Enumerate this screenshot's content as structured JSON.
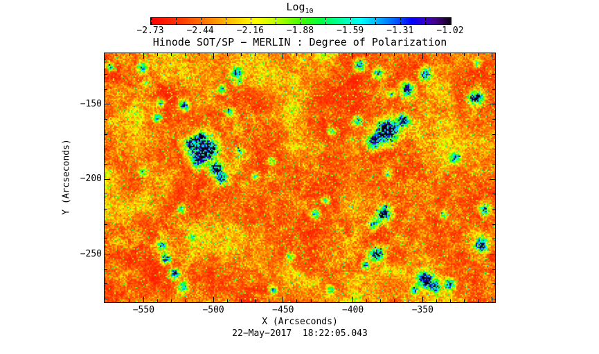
{
  "figure": {
    "colorbar_title": "Log",
    "colorbar_title_sub": "10",
    "colorbar_tick_labels": [
      "−2.73",
      "−2.44",
      "−2.16",
      "−1.88",
      "−1.59",
      "−1.31",
      "−1.02"
    ],
    "title": "Hinode SOT/SP − MERLIN : Degree of Polarization",
    "x_axis_label": "X (Arcseconds)",
    "y_axis_label": "Y (Arcseconds)",
    "x_tick_labels": [
      "−550",
      "−500",
      "−450",
      "−400",
      "−350"
    ],
    "y_tick_labels": [
      "−150",
      "−200",
      "−250"
    ],
    "timestamp": "22−May−2017  18:22:05.043"
  },
  "chart_data": {
    "type": "heatmap",
    "title": "Hinode SOT/SP - MERLIN : Degree of Polarization",
    "xlabel": "X (Arcseconds)",
    "ylabel": "Y (Arcseconds)",
    "timestamp": "22-May-2017 18:22:05.043",
    "x_range": [
      -578,
      -298
    ],
    "y_range": [
      -282,
      -116
    ],
    "x_ticks": [
      -550,
      -500,
      -450,
      -400,
      -350
    ],
    "y_ticks": [
      -150,
      -200,
      -250
    ],
    "minor_tick_step_arcsec": 10,
    "grid": false,
    "colorbar": {
      "label": "Log10",
      "orientation": "horizontal",
      "min": -2.73,
      "max": -1.02,
      "tick_values": [
        -2.73,
        -2.44,
        -2.16,
        -1.88,
        -1.59,
        -1.31,
        -1.02
      ],
      "palette_low_to_high": "red - orange - yellow - green - cyan - blue - violet - black"
    },
    "colormap_stops": [
      [
        0.0,
        "#ff0000"
      ],
      [
        0.09,
        "#ff3300"
      ],
      [
        0.18,
        "#ff7700"
      ],
      [
        0.28,
        "#ffcc00"
      ],
      [
        0.35,
        "#ffff00"
      ],
      [
        0.42,
        "#bbff00"
      ],
      [
        0.5,
        "#44ff00"
      ],
      [
        0.57,
        "#00ff44"
      ],
      [
        0.64,
        "#00ffaa"
      ],
      [
        0.7,
        "#00ffff"
      ],
      [
        0.76,
        "#00aaff"
      ],
      [
        0.82,
        "#0055ff"
      ],
      [
        0.87,
        "#0000ff"
      ],
      [
        0.91,
        "#3300cc"
      ],
      [
        0.95,
        "#440088"
      ],
      [
        1.0,
        "#0d0012"
      ]
    ],
    "background_field": "quiet-Sun degree of polarization, mostly log10 ≈ -2.7 to -2.2 (red/orange) with granular yellow-green mottling along network lanes",
    "strong_polarization_regions": [
      {
        "x": -504,
        "y": -180,
        "amp": 1.0,
        "sigma": 5
      },
      {
        "x": -511,
        "y": -187,
        "amp": 0.9,
        "sigma": 4
      },
      {
        "x": -498,
        "y": -193,
        "amp": 0.85,
        "sigma": 3.5
      },
      {
        "x": -509,
        "y": -172,
        "amp": 0.7,
        "sigma": 3
      },
      {
        "x": -516,
        "y": -177,
        "amp": 0.8,
        "sigma": 3.5
      },
      {
        "x": -494,
        "y": -200,
        "amp": 0.6,
        "sigma": 2.5
      },
      {
        "x": -521,
        "y": -151,
        "amp": 0.75,
        "sigma": 2.5
      },
      {
        "x": -538,
        "y": -149,
        "amp": 0.6,
        "sigma": 2
      },
      {
        "x": -540,
        "y": -159,
        "amp": 0.55,
        "sigma": 2
      },
      {
        "x": -549,
        "y": -136,
        "amp": 0.5,
        "sigma": 1.5
      },
      {
        "x": -551,
        "y": -126,
        "amp": 0.65,
        "sigma": 2.5
      },
      {
        "x": -574,
        "y": -125,
        "amp": 0.6,
        "sigma": 2
      },
      {
        "x": -494,
        "y": -140,
        "amp": 0.6,
        "sigma": 2
      },
      {
        "x": -482,
        "y": -135,
        "amp": 0.5,
        "sigma": 1.5
      },
      {
        "x": -483,
        "y": -129,
        "amp": 0.7,
        "sigma": 3
      },
      {
        "x": -489,
        "y": -155,
        "amp": 0.5,
        "sigma": 2
      },
      {
        "x": -551,
        "y": -195,
        "amp": 0.5,
        "sigma": 2
      },
      {
        "x": -523,
        "y": -220,
        "amp": 0.55,
        "sigma": 2
      },
      {
        "x": -537,
        "y": -244,
        "amp": 0.7,
        "sigma": 2.5
      },
      {
        "x": -534,
        "y": -253,
        "amp": 0.8,
        "sigma": 2.5
      },
      {
        "x": -528,
        "y": -263,
        "amp": 0.8,
        "sigma": 2.5
      },
      {
        "x": -522,
        "y": -272,
        "amp": 0.7,
        "sigma": 2.5
      },
      {
        "x": -515,
        "y": -238,
        "amp": 0.45,
        "sigma": 2
      },
      {
        "x": -395,
        "y": -124,
        "amp": 0.75,
        "sigma": 3
      },
      {
        "x": -382,
        "y": -129,
        "amp": 0.7,
        "sigma": 2.5
      },
      {
        "x": -361,
        "y": -140,
        "amp": 0.85,
        "sigma": 3.5
      },
      {
        "x": -372,
        "y": -143,
        "amp": 0.6,
        "sigma": 2
      },
      {
        "x": -348,
        "y": -130,
        "amp": 0.75,
        "sigma": 3
      },
      {
        "x": -375,
        "y": -168,
        "amp": 1.0,
        "sigma": 5.5
      },
      {
        "x": -385,
        "y": -175,
        "amp": 0.8,
        "sigma": 3.5
      },
      {
        "x": -364,
        "y": -161,
        "amp": 0.8,
        "sigma": 3
      },
      {
        "x": -397,
        "y": -161,
        "amp": 0.6,
        "sigma": 2.5
      },
      {
        "x": -415,
        "y": -168,
        "amp": 0.5,
        "sigma": 2
      },
      {
        "x": -375,
        "y": -196,
        "amp": 0.5,
        "sigma": 2
      },
      {
        "x": -326,
        "y": -186,
        "amp": 0.6,
        "sigma": 2.5
      },
      {
        "x": -312,
        "y": -146,
        "amp": 0.85,
        "sigma": 3.5
      },
      {
        "x": -311,
        "y": -123,
        "amp": 0.45,
        "sigma": 2
      },
      {
        "x": -458,
        "y": -188,
        "amp": 0.5,
        "sigma": 2
      },
      {
        "x": -481,
        "y": -181,
        "amp": 0.5,
        "sigma": 2
      },
      {
        "x": -470,
        "y": -198,
        "amp": 0.45,
        "sigma": 2
      },
      {
        "x": -427,
        "y": -223,
        "amp": 0.6,
        "sigma": 2.5
      },
      {
        "x": -420,
        "y": -214,
        "amp": 0.5,
        "sigma": 2
      },
      {
        "x": -445,
        "y": -252,
        "amp": 0.45,
        "sigma": 2
      },
      {
        "x": -378,
        "y": -223,
        "amp": 0.85,
        "sigma": 3.5
      },
      {
        "x": -385,
        "y": -230,
        "amp": 0.7,
        "sigma": 2.5
      },
      {
        "x": -383,
        "y": -250,
        "amp": 0.85,
        "sigma": 3.5
      },
      {
        "x": -391,
        "y": -257,
        "amp": 0.6,
        "sigma": 2
      },
      {
        "x": -348,
        "y": -267,
        "amp": 0.9,
        "sigma": 4
      },
      {
        "x": -341,
        "y": -272,
        "amp": 0.7,
        "sigma": 2.5
      },
      {
        "x": -356,
        "y": -274,
        "amp": 0.6,
        "sigma": 2
      },
      {
        "x": -330,
        "y": -270,
        "amp": 0.7,
        "sigma": 2.5
      },
      {
        "x": -308,
        "y": -244,
        "amp": 0.8,
        "sigma": 3.5
      },
      {
        "x": -305,
        "y": -220,
        "amp": 0.75,
        "sigma": 3
      },
      {
        "x": -335,
        "y": -224,
        "amp": 0.5,
        "sigma": 2
      },
      {
        "x": -457,
        "y": -274,
        "amp": 0.55,
        "sigma": 2
      },
      {
        "x": -416,
        "y": -274,
        "amp": 0.5,
        "sigma": 2
      }
    ]
  }
}
